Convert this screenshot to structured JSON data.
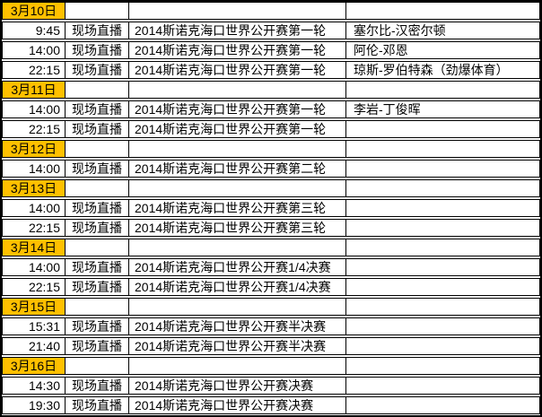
{
  "schedule": {
    "colors": {
      "date_cell_background": "#FFC000",
      "border": "#000000",
      "text": "#000000",
      "row_background": "#FFFFFF"
    },
    "rows": [
      {
        "type": "date",
        "date": "3月10日"
      },
      {
        "type": "program",
        "time": "9:45",
        "broadcast": "现场直播",
        "event": "2014斯诺克海口世界公开赛第一轮",
        "players": "塞尔比-汉密尔顿"
      },
      {
        "type": "program",
        "time": "14:00",
        "broadcast": "现场直播",
        "event": "2014斯诺克海口世界公开赛第一轮",
        "players": "阿伦-邓恩"
      },
      {
        "type": "program",
        "time": "22:15",
        "broadcast": "现场直播",
        "event": "2014斯诺克海口世界公开赛第一轮",
        "players": "琼斯-罗伯特森（劲爆体育）"
      },
      {
        "type": "date",
        "date": "3月11日"
      },
      {
        "type": "program",
        "time": "14:00",
        "broadcast": "现场直播",
        "event": "2014斯诺克海口世界公开赛第一轮",
        "players": "李岩-丁俊晖"
      },
      {
        "type": "program",
        "time": "22:15",
        "broadcast": "现场直播",
        "event": "2014斯诺克海口世界公开赛第一轮",
        "players": ""
      },
      {
        "type": "date",
        "date": "3月12日"
      },
      {
        "type": "program",
        "time": "14:00",
        "broadcast": "现场直播",
        "event": "2014斯诺克海口世界公开赛第二轮",
        "players": ""
      },
      {
        "type": "date",
        "date": "3月13日"
      },
      {
        "type": "program",
        "time": "14:00",
        "broadcast": "现场直播",
        "event": "2014斯诺克海口世界公开赛第三轮",
        "players": ""
      },
      {
        "type": "program",
        "time": "22:15",
        "broadcast": "现场直播",
        "event": "2014斯诺克海口世界公开赛第三轮",
        "players": ""
      },
      {
        "type": "date",
        "date": "3月14日"
      },
      {
        "type": "program",
        "time": "14:00",
        "broadcast": "现场直播",
        "event": "2014斯诺克海口世界公开赛1/4决赛",
        "players": ""
      },
      {
        "type": "program",
        "time": "22:15",
        "broadcast": "现场直播",
        "event": "2014斯诺克海口世界公开赛1/4决赛",
        "players": ""
      },
      {
        "type": "date",
        "date": "3月15日"
      },
      {
        "type": "program",
        "time": "15:31",
        "broadcast": "现场直播",
        "event": "2014斯诺克海口世界公开赛半决赛",
        "players": ""
      },
      {
        "type": "program",
        "time": "21:40",
        "broadcast": "现场直播",
        "event": "2014斯诺克海口世界公开赛半决赛",
        "players": ""
      },
      {
        "type": "date",
        "date": "3月16日"
      },
      {
        "type": "program",
        "time": "14:30",
        "broadcast": "现场直播",
        "event": "2014斯诺克海口世界公开赛决赛",
        "players": ""
      },
      {
        "type": "program",
        "time": "19:30",
        "broadcast": "现场直播",
        "event": "2014斯诺克海口世界公开赛决赛",
        "players": ""
      }
    ]
  }
}
